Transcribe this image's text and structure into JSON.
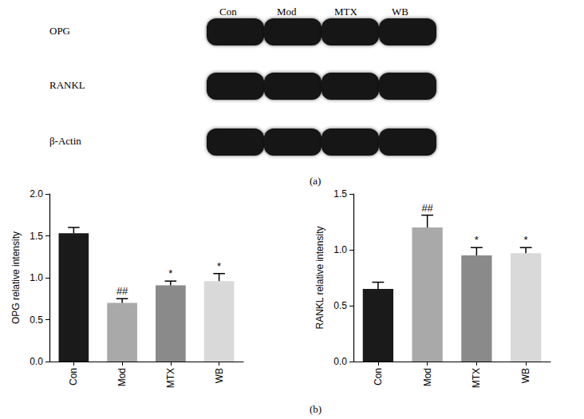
{
  "blot": {
    "panel": "(a)",
    "lanes": [
      "Con",
      "Mod",
      "MTX",
      "WB"
    ],
    "rows": [
      "OPG",
      "RANKL",
      "β-Actin"
    ]
  },
  "panel_b": "(b)",
  "chart_data": [
    {
      "type": "bar",
      "categories": [
        "Con",
        "Mod",
        "MTX",
        "WB"
      ],
      "values": [
        1.53,
        0.7,
        0.91,
        0.96
      ],
      "errors": [
        0.07,
        0.05,
        0.05,
        0.09
      ],
      "annotations": [
        null,
        "##",
        "*",
        "*"
      ],
      "colors": [
        "#1a1a1a",
        "#a9a9a9",
        "#8a8a8a",
        "#d9d9d9"
      ],
      "y_label": "OPG relative intensity",
      "ylim": [
        0,
        2
      ],
      "yticks": [
        {
          "value": 0,
          "label": "0.0"
        },
        {
          "value": 0.5,
          "label": "0.5"
        },
        {
          "value": 1,
          "label": "1.0"
        },
        {
          "value": 1.5,
          "label": "1.5"
        },
        {
          "value": 2,
          "label": "2.0"
        }
      ],
      "grid": false
    },
    {
      "type": "bar",
      "categories": [
        "Con",
        "Mod",
        "MTX",
        "WB"
      ],
      "values": [
        0.65,
        1.2,
        0.95,
        0.97
      ],
      "errors": [
        0.06,
        0.11,
        0.07,
        0.05
      ],
      "annotations": [
        null,
        "##",
        "*",
        "*"
      ],
      "colors": [
        "#1a1a1a",
        "#a9a9a9",
        "#8a8a8a",
        "#d9d9d9"
      ],
      "y_label": "RANKL relative intensity",
      "ylim": [
        0,
        1.5
      ],
      "yticks": [
        {
          "value": 0,
          "label": "0.0"
        },
        {
          "value": 0.5,
          "label": "0.5"
        },
        {
          "value": 1,
          "label": "1.0"
        },
        {
          "value": 1.5,
          "label": "1.5"
        }
      ],
      "grid": false
    }
  ]
}
